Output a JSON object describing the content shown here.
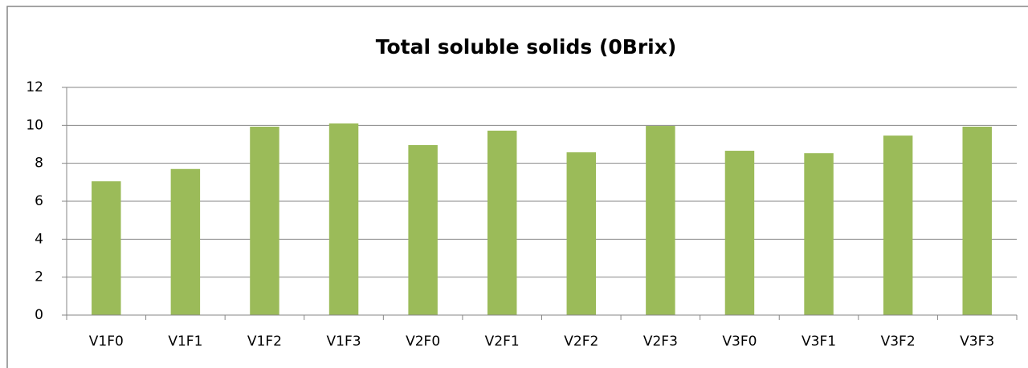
{
  "chart_data": {
    "type": "bar",
    "title": "Total soluble solids (0Brix)",
    "categories": [
      "V1F0",
      "V1F1",
      "V1F2",
      "V1F3",
      "V2F0",
      "V2F1",
      "V2F2",
      "V2F3",
      "V3F0",
      "V3F1",
      "V3F2",
      "V3F3"
    ],
    "values": [
      7.05,
      7.7,
      9.93,
      10.1,
      8.96,
      9.72,
      8.58,
      9.97,
      8.66,
      8.53,
      9.46,
      9.93
    ],
    "color": "#9bbb59",
    "ylim": [
      0,
      12
    ],
    "yticks": [
      0,
      2,
      4,
      6,
      8,
      10,
      12
    ],
    "grid": true
  }
}
